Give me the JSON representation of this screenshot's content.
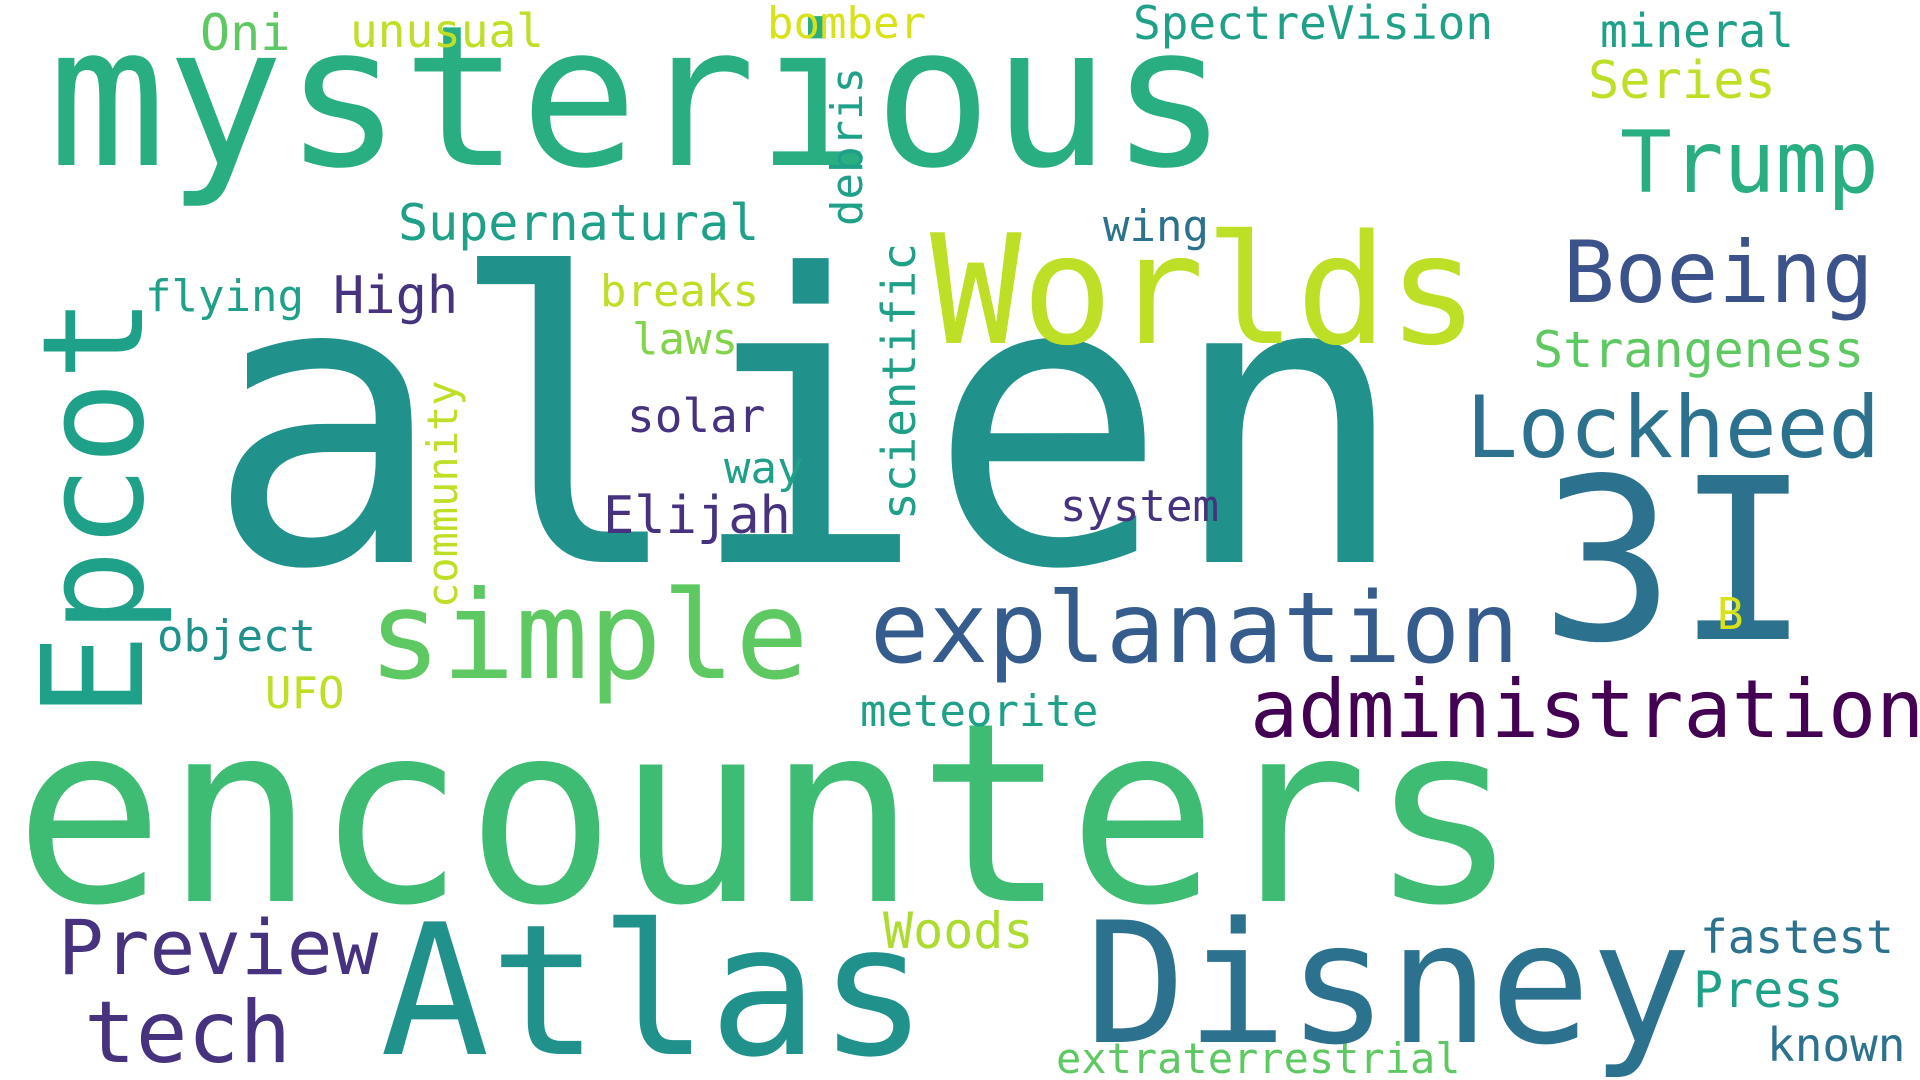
{
  "colors": {
    "background": "#ffffff",
    "purple_dark": "#440154",
    "indigo": "#3b528b",
    "navy": "#46327e",
    "slate_blue": "#365c8d",
    "steel_blue": "#2c728e",
    "teal": "#21918c",
    "teal_green": "#1fa088",
    "green": "#28ae80",
    "green_mid": "#3fbc73",
    "green_light": "#5ec962",
    "lime": "#84d44b",
    "yellow_green": "#addc30",
    "yellow": "#bddf26",
    "gold": "#d8e219"
  },
  "words": [
    {
      "id": "alien",
      "text": "alien"
    },
    {
      "id": "encounters",
      "text": "encounters"
    },
    {
      "id": "mysterious",
      "text": "mysterious"
    },
    {
      "id": "atlas",
      "text": "Atlas"
    },
    {
      "id": "disney",
      "text": "Disney"
    },
    {
      "id": "worlds",
      "text": "Worlds"
    },
    {
      "id": "3i",
      "text": "3I"
    },
    {
      "id": "epcot",
      "text": "Epcot"
    },
    {
      "id": "simple",
      "text": "simple"
    },
    {
      "id": "explanation",
      "text": "explanation"
    },
    {
      "id": "administration",
      "text": "administration"
    },
    {
      "id": "boeing",
      "text": "Boeing"
    },
    {
      "id": "lockheed",
      "text": "Lockheed"
    },
    {
      "id": "trump",
      "text": "Trump"
    },
    {
      "id": "preview",
      "text": "Preview"
    },
    {
      "id": "tech",
      "text": "tech"
    },
    {
      "id": "supernatural",
      "text": "Supernatural"
    },
    {
      "id": "strangeness",
      "text": "Strangeness"
    },
    {
      "id": "elijah",
      "text": "Elijah"
    },
    {
      "id": "high",
      "text": "High"
    },
    {
      "id": "woods",
      "text": "Woods"
    },
    {
      "id": "press",
      "text": "Press"
    },
    {
      "id": "fastest",
      "text": "fastest"
    },
    {
      "id": "extraterrestrial",
      "text": "extraterrestrial"
    },
    {
      "id": "known",
      "text": "known"
    },
    {
      "id": "spectrevision",
      "text": "SpectreVision"
    },
    {
      "id": "mineral",
      "text": "mineral"
    },
    {
      "id": "series",
      "text": "Series"
    },
    {
      "id": "oni",
      "text": "Oni"
    },
    {
      "id": "unusual",
      "text": "unusual"
    },
    {
      "id": "bomber",
      "text": "bomber"
    },
    {
      "id": "debris",
      "text": "debris"
    },
    {
      "id": "scientific",
      "text": "scientific"
    },
    {
      "id": "community",
      "text": "community"
    },
    {
      "id": "flying",
      "text": "flying"
    },
    {
      "id": "breaks",
      "text": "breaks"
    },
    {
      "id": "laws",
      "text": "laws"
    },
    {
      "id": "wing",
      "text": "wing"
    },
    {
      "id": "solar",
      "text": "solar"
    },
    {
      "id": "way",
      "text": "way"
    },
    {
      "id": "system",
      "text": "system"
    },
    {
      "id": "object",
      "text": "object"
    },
    {
      "id": "ufo",
      "text": "UFO"
    },
    {
      "id": "meteorite",
      "text": "meteorite"
    },
    {
      "id": "b",
      "text": "B"
    }
  ]
}
